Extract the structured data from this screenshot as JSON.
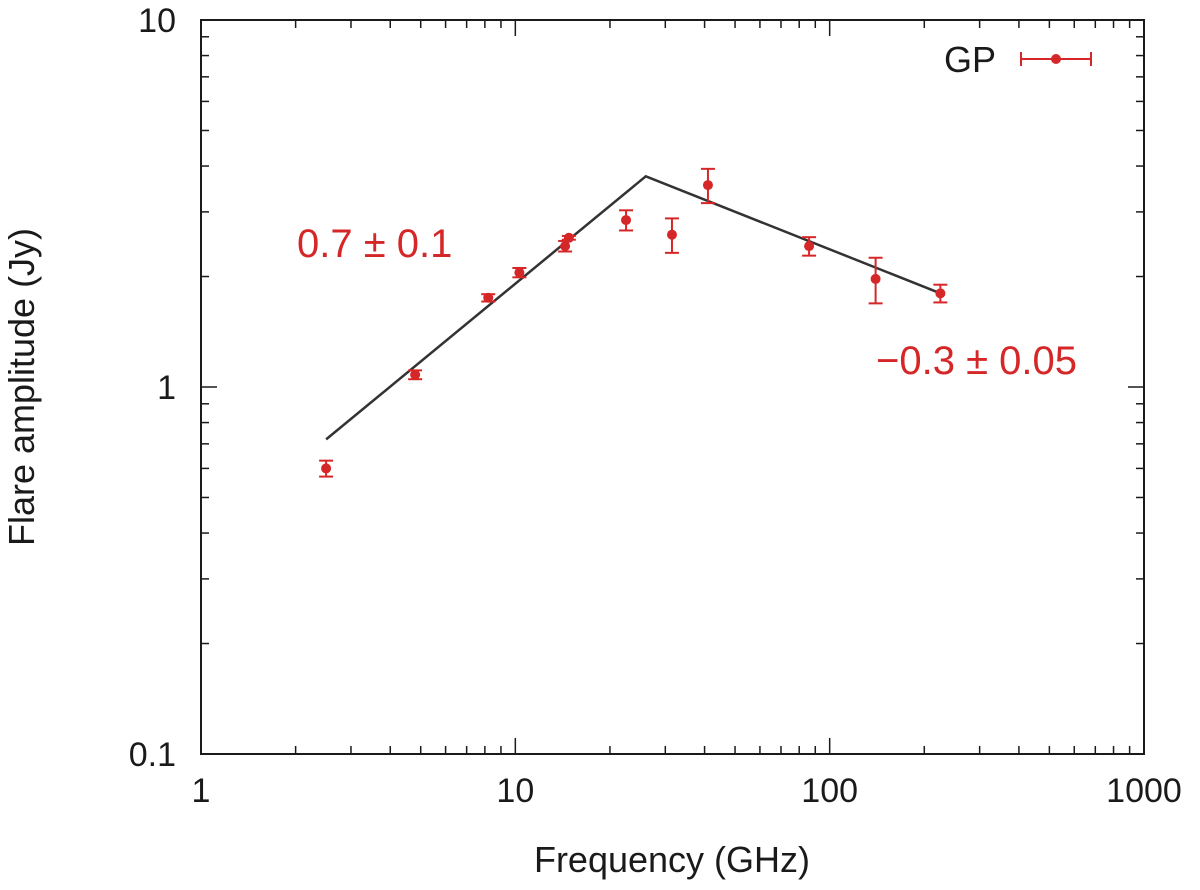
{
  "colors": {
    "series": "#d62728",
    "fit": "#333333",
    "axis": "#1a1a1a"
  },
  "chart_data": {
    "type": "scatter",
    "title": "",
    "xlabel": "Frequency (GHz)",
    "ylabel": "Flare amplitude (Jy)",
    "xscale": "log",
    "yscale": "log",
    "xlim": [
      1,
      1000
    ],
    "ylim": [
      0.1,
      10
    ],
    "xticks": [
      {
        "value": 1,
        "label": "1"
      },
      {
        "value": 10,
        "label": "10"
      },
      {
        "value": 100,
        "label": "100"
      },
      {
        "value": 1000,
        "label": "1000"
      }
    ],
    "yticks": [
      {
        "value": 0.1,
        "label": "0.1"
      },
      {
        "value": 1,
        "label": "1"
      },
      {
        "value": 10,
        "label": "10"
      }
    ],
    "series": [
      {
        "name": "GP",
        "points": [
          {
            "x": 2.5,
            "y": 0.6,
            "err": 0.03
          },
          {
            "x": 4.8,
            "y": 1.08,
            "err": 0.03
          },
          {
            "x": 8.2,
            "y": 1.75,
            "err": 0.04
          },
          {
            "x": 10.3,
            "y": 2.05,
            "err": 0.06
          },
          {
            "x": 14.4,
            "y": 2.42,
            "err": 0.08
          },
          {
            "x": 14.8,
            "y": 2.55,
            "err": 0.03
          },
          {
            "x": 22.5,
            "y": 2.85,
            "err": 0.18
          },
          {
            "x": 31.5,
            "y": 2.6,
            "err": 0.28
          },
          {
            "x": 41,
            "y": 3.55,
            "err": 0.38
          },
          {
            "x": 86,
            "y": 2.42,
            "err": 0.14
          },
          {
            "x": 140,
            "y": 1.97,
            "err": 0.28
          },
          {
            "x": 225,
            "y": 1.8,
            "err": 0.1
          }
        ]
      }
    ],
    "fit_line": [
      {
        "x": 2.5,
        "y": 0.72
      },
      {
        "x": 26,
        "y": 3.75
      },
      {
        "x": 225,
        "y": 1.8
      }
    ],
    "annotations": [
      {
        "text": "0.7 ± 0.1"
      },
      {
        "text": "−0.3 ± 0.05"
      }
    ],
    "legend": {
      "label": "GP",
      "position": "top-right"
    }
  }
}
